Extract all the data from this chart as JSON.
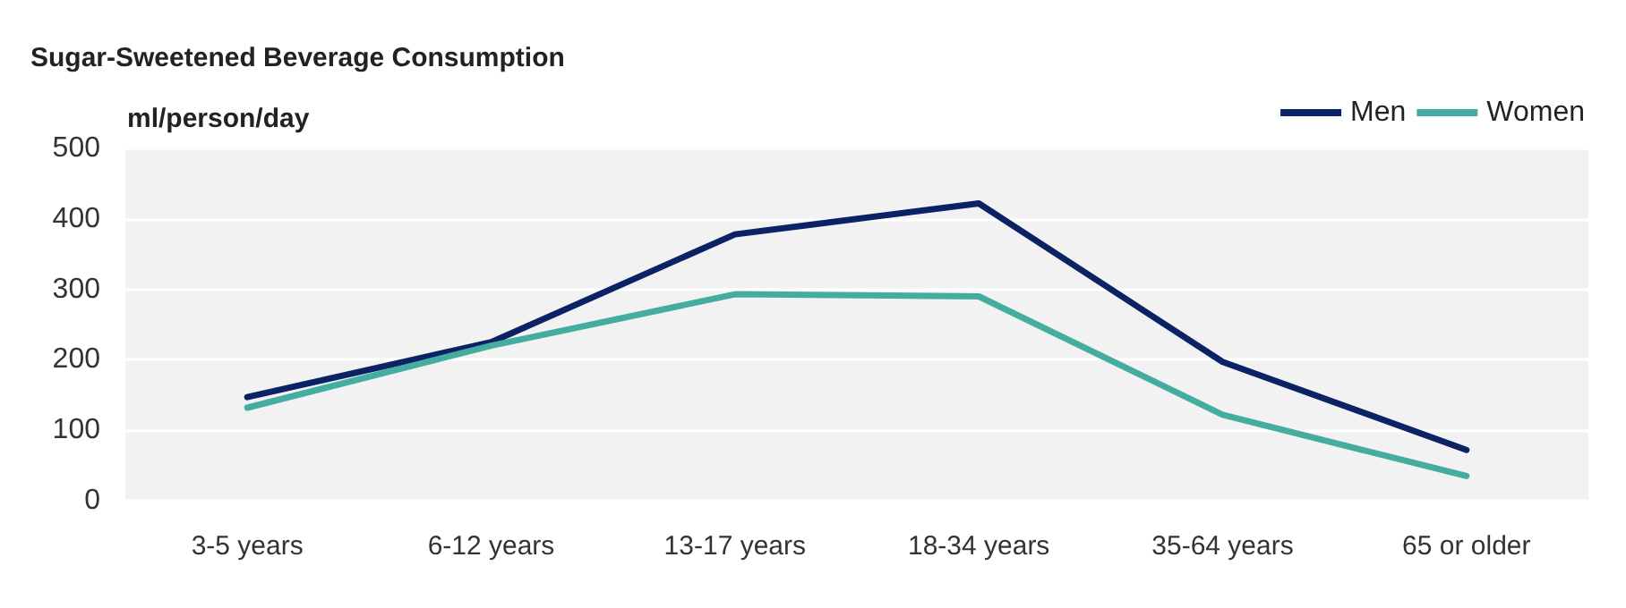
{
  "chart_data": {
    "type": "line",
    "title": "Sugar-Sweetened Beverage Consumption",
    "ylabel": "ml/person/day",
    "categories": [
      "3-5 years",
      "6-12 years",
      "13-17 years",
      "18-34 years",
      "35-64 years",
      "65 or older"
    ],
    "series": [
      {
        "name": "Men",
        "color": "#0b2265",
        "values": [
          147,
          225,
          378,
          422,
          197,
          72
        ]
      },
      {
        "name": "Women",
        "color": "#45ada0",
        "values": [
          132,
          220,
          293,
          290,
          122,
          35
        ]
      }
    ],
    "ylim": [
      0,
      500
    ],
    "yticks": [
      0,
      100,
      200,
      300,
      400,
      500
    ],
    "grid": "y",
    "legend": "top right",
    "marker": "none",
    "line_style": "solid"
  }
}
